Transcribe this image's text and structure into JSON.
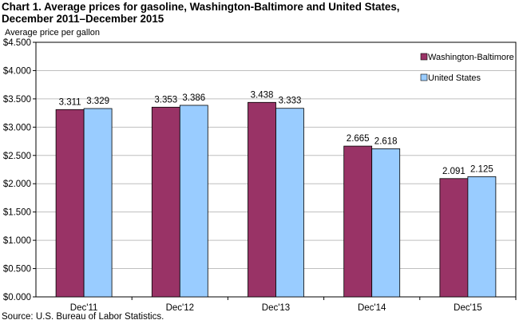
{
  "title_line1": "Chart 1. Average prices for gasoline, Washington-Baltimore and United States,",
  "title_line2": "December 2011–December 2015",
  "source": "Source: U.S. Bureau of Labor Statistics.",
  "chart_data": {
    "type": "bar",
    "title": "Chart 1. Average prices for gasoline, Washington-Baltimore and United States, December 2011–December 2015",
    "xlabel": "",
    "ylabel": "Average price per gallon",
    "categories": [
      "Dec'11",
      "Dec'12",
      "Dec'13",
      "Dec'14",
      "Dec'15"
    ],
    "series": [
      {
        "name": "Washington-Baltimore",
        "color": "#993366",
        "values": [
          3.311,
          3.353,
          3.438,
          2.665,
          2.091
        ],
        "labels": [
          "3.311",
          "3.353",
          "3.438",
          "2.665",
          "2.091"
        ]
      },
      {
        "name": "United States",
        "color": "#99CCFF",
        "values": [
          3.329,
          3.386,
          3.333,
          2.618,
          2.125
        ],
        "labels": [
          "3.329",
          "3.386",
          "3.333",
          "2.618",
          "2.125"
        ]
      }
    ],
    "ylim": [
      0,
      4.5
    ],
    "yticks": [
      0,
      0.5,
      1.0,
      1.5,
      2.0,
      2.5,
      3.0,
      3.5,
      4.0,
      4.5
    ],
    "ytick_labels": [
      "$0.000",
      "$0.500",
      "$1.000",
      "$1.500",
      "$2.000",
      "$2.500",
      "$3.000",
      "$3.500",
      "$4.000",
      "$4.500"
    ],
    "grid": true,
    "legend_position": "top-right"
  }
}
